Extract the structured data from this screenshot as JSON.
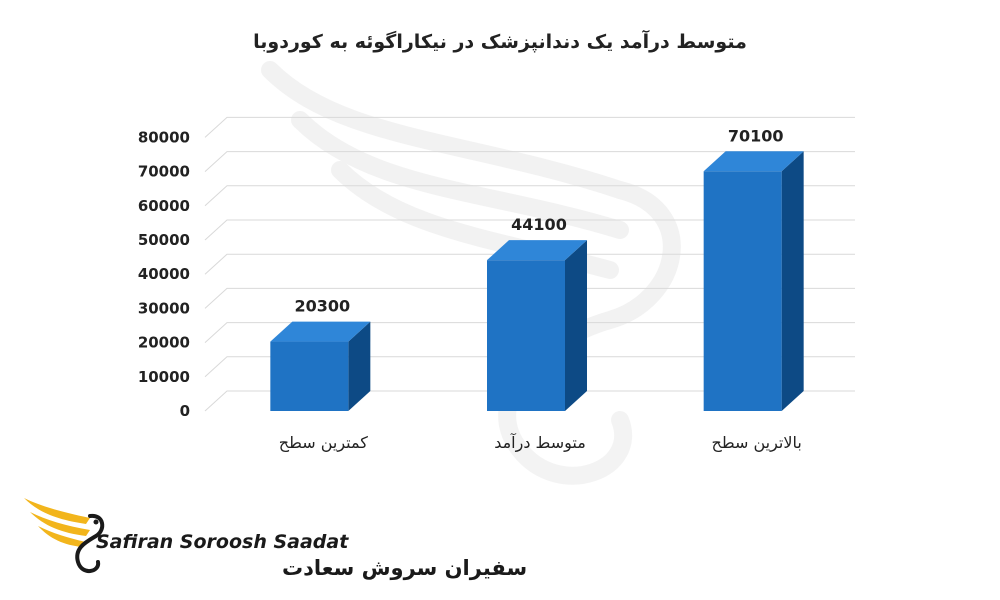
{
  "chart_data": {
    "type": "bar",
    "title": "متوسط درآمد یک دندانپزشک در نیکاراگوئه به کوردوبا",
    "categories": [
      "کمترین سطح",
      "متوسط درآمد",
      "بالاترین سطح"
    ],
    "values": [
      20300,
      44100,
      70100
    ],
    "data_labels": [
      "20300",
      "44100",
      "70100"
    ],
    "ylim": [
      0,
      80000
    ],
    "yticks": [
      "0",
      "10000",
      "20000",
      "30000",
      "40000",
      "50000",
      "60000",
      "70000",
      "80000"
    ],
    "grid": true,
    "style": "3d-column",
    "colors": {
      "front": "#1f73c4",
      "side": "#0d4a85",
      "top": "#2f86d8"
    }
  },
  "brand": {
    "name_en": "Safiran Soroosh Saadat",
    "name_fa": "سفیران سروش سعادت",
    "logo_icon": "eagle-logo-icon",
    "colors": {
      "wing": "#f2b51c",
      "text": "#1a1a1a"
    }
  }
}
